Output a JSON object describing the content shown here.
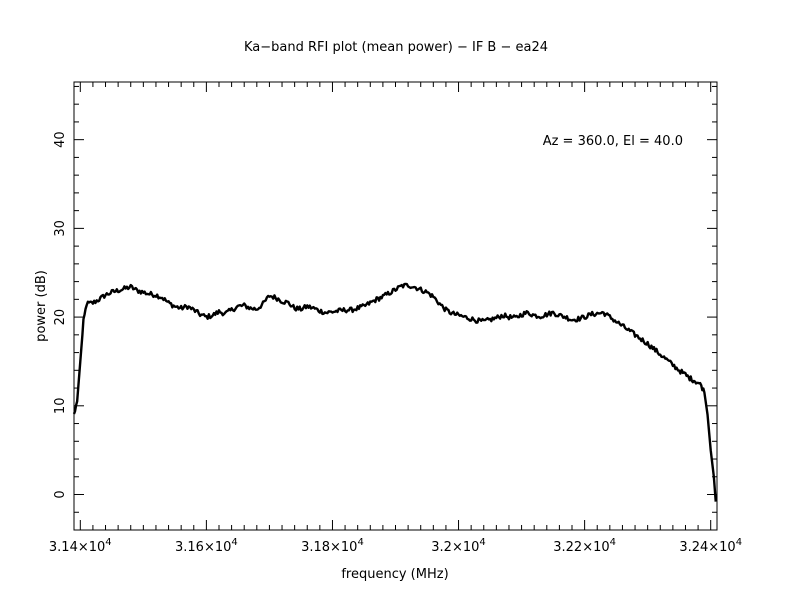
{
  "chart_data": {
    "type": "line",
    "title": "Ka−band RFI plot (mean power) − IF B − ea24",
    "xlabel": "frequency (MHz)",
    "ylabel": "power (dB)",
    "annotation": "Az = 360.0, El = 40.0",
    "xlim": [
      31390,
      32410
    ],
    "ylim": [
      -4,
      46.5
    ],
    "grid": false,
    "x_ticks": [
      {
        "value": 31400,
        "mantissa": "3.14",
        "exponent": "4"
      },
      {
        "value": 31600,
        "mantissa": "3.16",
        "exponent": "4"
      },
      {
        "value": 31800,
        "mantissa": "3.18",
        "exponent": "4"
      },
      {
        "value": 32000,
        "mantissa": "3.2",
        "exponent": "4"
      },
      {
        "value": 32200,
        "mantissa": "3.22",
        "exponent": "4"
      },
      {
        "value": 32400,
        "mantissa": "3.24",
        "exponent": "4"
      }
    ],
    "y_ticks": [
      0,
      10,
      20,
      30,
      40
    ],
    "series": [
      {
        "x": [
          31390,
          31395,
          31400,
          31405,
          31410,
          31420,
          31430,
          31440,
          31450,
          31460,
          31470,
          31480,
          31490,
          31500,
          31510,
          31520,
          31530,
          31540,
          31550,
          31560,
          31570,
          31580,
          31590,
          31600,
          31610,
          31620,
          31630,
          31640,
          31650,
          31660,
          31670,
          31680,
          31690,
          31700,
          31710,
          31720,
          31730,
          31740,
          31750,
          31760,
          31770,
          31780,
          31790,
          31800,
          31810,
          31820,
          31830,
          31840,
          31850,
          31860,
          31870,
          31880,
          31890,
          31900,
          31910,
          31920,
          31930,
          31940,
          31950,
          31960,
          31970,
          31980,
          31990,
          32000,
          32010,
          32020,
          32030,
          32040,
          32050,
          32060,
          32070,
          32080,
          32090,
          32100,
          32110,
          32120,
          32130,
          32140,
          32150,
          32160,
          32170,
          32180,
          32190,
          32200,
          32210,
          32220,
          32230,
          32240,
          32250,
          32260,
          32270,
          32280,
          32290,
          32300,
          32310,
          32320,
          32330,
          32340,
          32350,
          32360,
          32365,
          32370,
          32375,
          32380,
          32385,
          32390,
          32395,
          32400,
          32405,
          32408
        ],
        "y": [
          9.0,
          10.5,
          15.0,
          19.5,
          21.5,
          21.6,
          22.0,
          22.5,
          22.8,
          23.0,
          23.2,
          23.4,
          23.0,
          22.8,
          22.6,
          22.5,
          22.2,
          21.6,
          21.2,
          21.0,
          21.2,
          20.8,
          20.3,
          20.0,
          20.2,
          20.6,
          20.4,
          20.8,
          21.2,
          21.3,
          21.0,
          20.9,
          21.5,
          22.4,
          22.2,
          21.8,
          21.6,
          21.0,
          20.9,
          21.2,
          21.0,
          20.7,
          20.5,
          20.6,
          20.7,
          20.8,
          20.8,
          21.0,
          21.2,
          21.6,
          22.0,
          22.3,
          22.7,
          23.1,
          23.5,
          23.6,
          23.4,
          23.1,
          22.8,
          22.3,
          21.5,
          20.8,
          20.4,
          20.2,
          20.0,
          19.8,
          19.6,
          19.5,
          19.7,
          19.9,
          20.2,
          20.0,
          19.9,
          20.3,
          20.5,
          20.2,
          20.1,
          20.3,
          20.5,
          20.2,
          20.0,
          19.7,
          19.8,
          20.0,
          20.3,
          20.4,
          20.5,
          20.0,
          19.5,
          19.0,
          18.5,
          18.0,
          17.5,
          17.0,
          16.4,
          15.8,
          15.2,
          14.6,
          14.0,
          13.5,
          13.2,
          13.0,
          12.8,
          12.6,
          12.3,
          11.5,
          9.0,
          5.0,
          2.0,
          -0.8
        ]
      }
    ]
  }
}
